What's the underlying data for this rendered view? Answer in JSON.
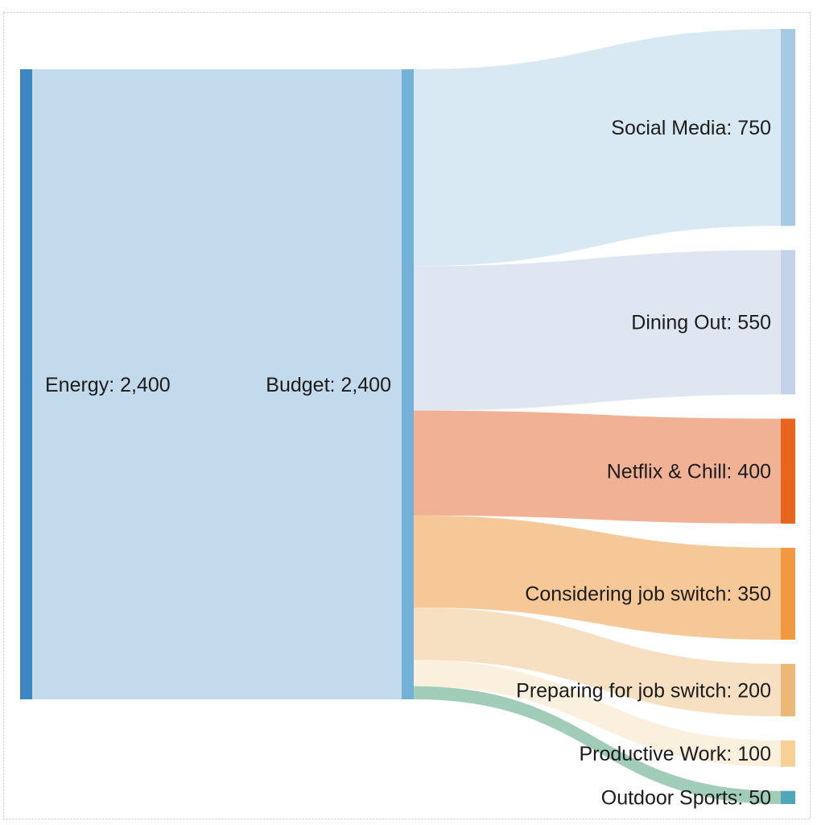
{
  "figure": {
    "background": "#ffffff",
    "border_color": "#c0c6cb",
    "text_color": "#1c1c1c"
  },
  "chart_data": {
    "type": "sankey",
    "title": "",
    "total": 2400,
    "nodes": [
      {
        "slug": "energy",
        "name": "Energy",
        "value": 2400,
        "label": "Energy: 2,400",
        "color": "#3c87c3",
        "label_side": "right-of-node"
      },
      {
        "slug": "budget",
        "name": "Budget",
        "value": 2400,
        "label": "Budget: 2,400",
        "color": "#74b1d8",
        "label_side": "left-of-node"
      },
      {
        "slug": "social-media",
        "name": "Social Media",
        "value": 750,
        "label": "Social Media: 750",
        "color": "#a6cae2",
        "label_side": "left-of-node"
      },
      {
        "slug": "dining-out",
        "name": "Dining Out",
        "value": 550,
        "label": "Dining Out: 550",
        "color": "#c4d3e8",
        "label_side": "left-of-node"
      },
      {
        "slug": "netflix-chill",
        "name": "Netflix & Chill",
        "value": 400,
        "label": "Netflix & Chill: 400",
        "color": "#e8651e",
        "label_side": "left-of-node"
      },
      {
        "slug": "considering-job-switch",
        "name": "Considering job switch",
        "value": 350,
        "label": "Considering job switch: 350",
        "color": "#f0993f",
        "label_side": "left-of-node"
      },
      {
        "slug": "preparing-job-switch",
        "name": "Preparing for job switch",
        "value": 200,
        "label": "Preparing for job switch: 200",
        "color": "#ecb877",
        "label_side": "left-of-node"
      },
      {
        "slug": "productive-work",
        "name": "Productive Work",
        "value": 100,
        "label": "Productive Work: 100",
        "color": "#f7d095",
        "label_side": "left-of-node"
      },
      {
        "slug": "outdoor-sports",
        "name": "Outdoor Sports",
        "value": 50,
        "label": "Outdoor Sports: 50",
        "color": "#4fa7b8",
        "label_side": "left-of-node"
      }
    ],
    "links": [
      {
        "source": "energy",
        "target": "budget",
        "value": 2400,
        "color": "#c2daec"
      },
      {
        "source": "budget",
        "target": "social-media",
        "value": 750,
        "color": "#d9e9f4"
      },
      {
        "source": "budget",
        "target": "dining-out",
        "value": 550,
        "color": "#dfe6f2"
      },
      {
        "source": "budget",
        "target": "netflix-chill",
        "value": 400,
        "color": "#f1b194"
      },
      {
        "source": "budget",
        "target": "considering-job-switch",
        "value": 350,
        "color": "#f6c897"
      },
      {
        "source": "budget",
        "target": "preparing-job-switch",
        "value": 200,
        "color": "#f7e0c1"
      },
      {
        "source": "budget",
        "target": "productive-work",
        "value": 100,
        "color": "#fbf0dd"
      },
      {
        "source": "budget",
        "target": "outdoor-sports",
        "value": 50,
        "color": "#a0ccb8"
      }
    ],
    "layout_hints": {
      "orientation": "horizontal",
      "columns": 3,
      "grid": false,
      "legend": "none",
      "value_labels": "inline-with-node-name"
    }
  }
}
